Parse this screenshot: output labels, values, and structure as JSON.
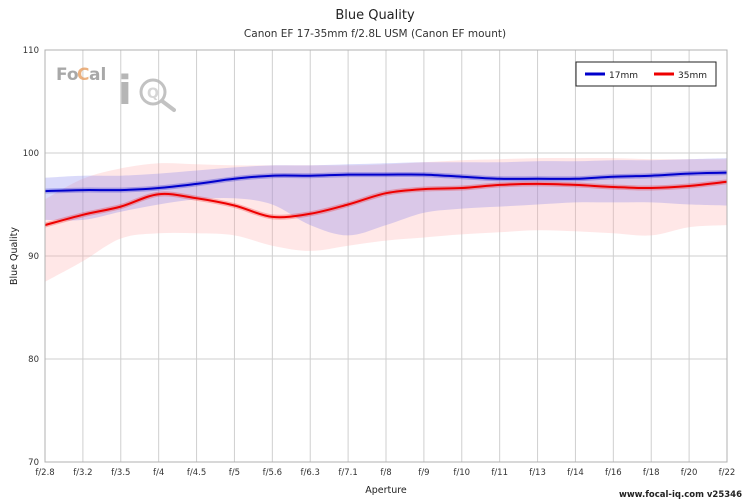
{
  "chart_data": {
    "type": "line",
    "title": "Blue Quality",
    "subtitle": "Canon EF 17-35mm f/2.8L USM (Canon EF mount)",
    "xlabel": "Aperture",
    "ylabel": "Blue Quality",
    "ylim": [
      70,
      110
    ],
    "yticks": [
      70,
      80,
      90,
      100,
      110
    ],
    "categories": [
      "f/2.8",
      "f/3.2",
      "f/3.5",
      "f/4",
      "f/4.5",
      "f/5",
      "f/5.6",
      "f/6.3",
      "f/7.1",
      "f/8",
      "f/9",
      "f/10",
      "f/11",
      "f/13",
      "f/14",
      "f/16",
      "f/18",
      "f/20",
      "f/22"
    ],
    "grid": true,
    "legend_position": "top-right",
    "series": [
      {
        "name": "17mm",
        "color": "#0000cc",
        "band_color": "#7a7aee",
        "values": [
          96.3,
          96.4,
          96.4,
          96.6,
          97.0,
          97.5,
          97.8,
          97.8,
          97.9,
          97.9,
          97.9,
          97.7,
          97.5,
          97.5,
          97.5,
          97.7,
          97.8,
          98.0,
          98.1
        ],
        "band_upper": [
          97.6,
          97.8,
          97.8,
          98.0,
          98.3,
          98.6,
          98.8,
          98.8,
          98.9,
          99.0,
          99.1,
          99.1,
          99.1,
          99.2,
          99.2,
          99.3,
          99.3,
          99.4,
          99.5
        ],
        "band_lower": [
          93.5,
          93.5,
          94.3,
          95.0,
          95.5,
          95.6,
          95.0,
          93.0,
          92.0,
          93.0,
          94.2,
          94.6,
          94.8,
          95.0,
          95.2,
          95.2,
          95.2,
          95.0,
          94.9
        ]
      },
      {
        "name": "35mm",
        "color": "#ee0000",
        "band_color": "#ffaaaa",
        "values": [
          93.0,
          94.0,
          94.8,
          96.0,
          95.6,
          94.9,
          93.8,
          94.1,
          95.0,
          96.1,
          96.5,
          96.6,
          96.9,
          97.0,
          96.9,
          96.7,
          96.6,
          96.8,
          97.2
        ],
        "band_upper": [
          95.5,
          97.5,
          98.5,
          99.0,
          98.9,
          98.8,
          98.8,
          98.8,
          98.8,
          98.9,
          99.1,
          99.3,
          99.4,
          99.5,
          99.5,
          99.5,
          99.4,
          99.4,
          99.4
        ],
        "band_lower": [
          87.5,
          89.5,
          91.7,
          92.2,
          92.2,
          92.0,
          91.0,
          90.5,
          91.0,
          91.5,
          91.8,
          92.1,
          92.3,
          92.5,
          92.4,
          92.2,
          92.0,
          92.8,
          93.0
        ]
      }
    ],
    "logo": {
      "part1": "Fo",
      "part2": "C",
      "part3": "al",
      "part4": "i",
      "part5": "Q"
    },
    "footer": "www.focal-iq.com  v25346"
  }
}
